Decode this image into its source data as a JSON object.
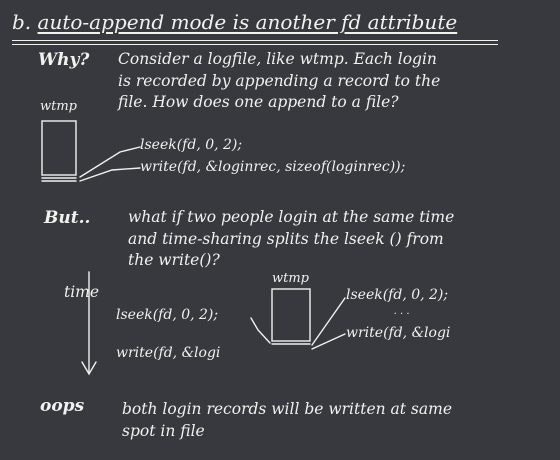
{
  "title": {
    "prefix": "b. ",
    "text": "auto-append mode is another fd attribute"
  },
  "why": {
    "label": "Why?",
    "lines": [
      "Consider a logfile, like wtmp.  Each login",
      "is recorded by appending a record to the",
      "file.  How does one append to a file?"
    ],
    "box_label": "wtmp",
    "code": [
      "lseek(fd, 0, 2);",
      "write(fd, &loginrec, sizeof(loginrec));"
    ]
  },
  "but": {
    "label": "But..",
    "lines": [
      "what if two people login at the same time",
      "and time-sharing splits the lseek () from",
      "the write()?"
    ],
    "box_label": "wtmp",
    "time_label": "time",
    "left_code": [
      "lseek(fd, 0, 2);",
      "write(fd, &logi"
    ],
    "right_code": [
      "lseek(fd, 0, 2);",
      "write(fd, &logi"
    ]
  },
  "oops": {
    "label": "oops",
    "lines": [
      "both login records will be written at same",
      "spot in file"
    ]
  }
}
